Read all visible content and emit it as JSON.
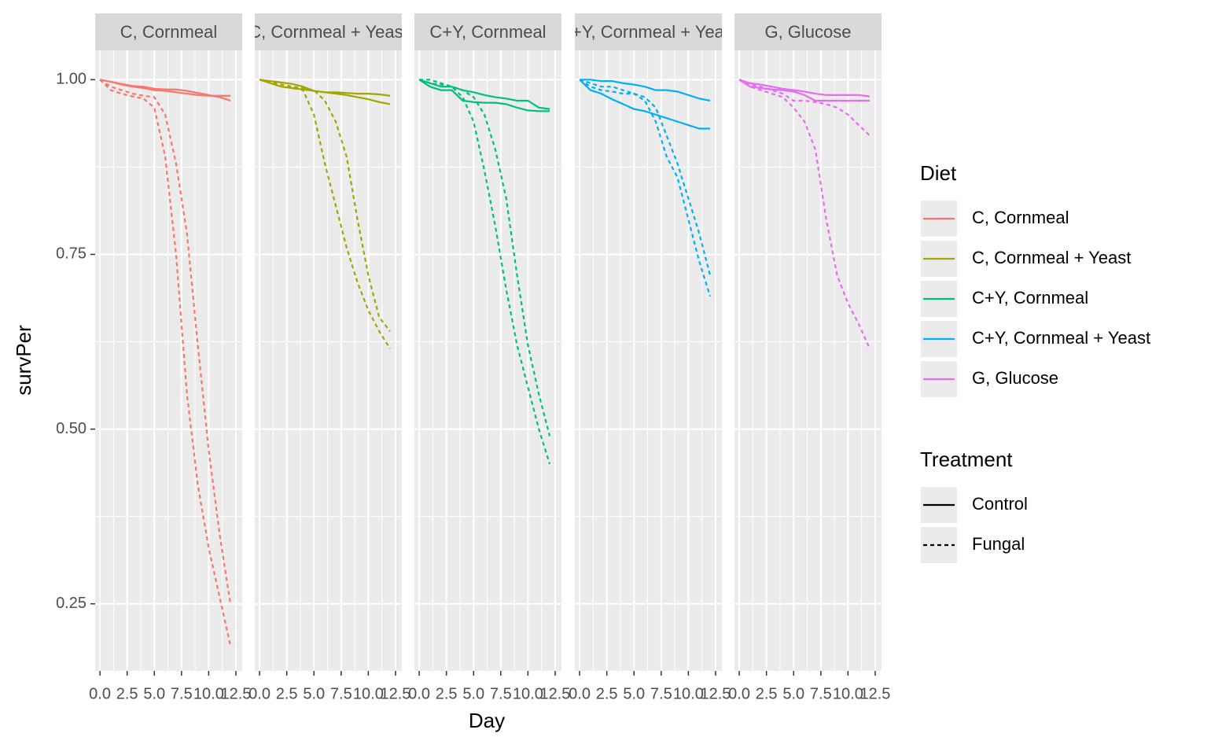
{
  "chart_data": {
    "type": "line",
    "x_label": "Day",
    "y_label": "survPer",
    "x": [
      0,
      1,
      2,
      3,
      4,
      5,
      6,
      7,
      8,
      9,
      10,
      11,
      12
    ],
    "xlim": [
      -0.44,
      13.08
    ],
    "ylim": [
      0.154,
      1.042
    ],
    "xticks": [
      {
        "value": 0,
        "label": "0.0"
      },
      2.5,
      {
        "value": 5,
        "label": "5.0"
      },
      7.5,
      {
        "value": 10,
        "label": "10.0"
      },
      12.5
    ],
    "yticks": [
      0.25,
      {
        "value": 0.5,
        "label": "0.50"
      },
      0.75,
      {
        "value": 1,
        "label": "1.00"
      }
    ],
    "grid": true,
    "legend_position": "right",
    "legends": [
      {
        "title": "Diet",
        "items": [
          {
            "name": "C, Cornmeal",
            "color": "#F8766D"
          },
          {
            "name": "C, Cornmeal + Yeast",
            "color": "#A3A500"
          },
          {
            "name": "C+Y, Cornmeal",
            "color": "#00BF7D"
          },
          {
            "name": "C+Y, Cornmeal + Yeast",
            "color": "#00B0F6"
          },
          {
            "name": "G, Glucose",
            "color": "#E76BF3"
          }
        ]
      },
      {
        "title": "Treatment",
        "items": [
          {
            "name": "Control",
            "linetype": "solid"
          },
          {
            "name": "Fungal",
            "linetype": "dashed"
          }
        ]
      }
    ],
    "facets": [
      {
        "title": "C, Cornmeal",
        "color": "#F8766D",
        "series": [
          {
            "linetype": "solid",
            "values": [
              1,
              0.997,
              0.994,
              0.991,
              0.99,
              0.987,
              0.986,
              0.986,
              0.984,
              0.981,
              0.978,
              0.975,
              0.97
            ]
          },
          {
            "linetype": "solid",
            "values": [
              1,
              0.997,
              0.993,
              0.99,
              0.988,
              0.985,
              0.984,
              0.982,
              0.98,
              0.978,
              0.977,
              0.977,
              0.977
            ]
          },
          {
            "linetype": "dashed",
            "values": [
              1,
              0.985,
              0.98,
              0.976,
              0.973,
              0.96,
              0.89,
              0.75,
              0.55,
              0.42,
              0.33,
              0.26,
              0.19
            ]
          },
          {
            "linetype": "dashed",
            "values": [
              1,
              0.99,
              0.985,
              0.98,
              0.977,
              0.975,
              0.95,
              0.88,
              0.78,
              0.62,
              0.47,
              0.35,
              0.25
            ]
          }
        ]
      },
      {
        "title": "C, Cornmeal + Yeast",
        "color": "#A3A500",
        "series": [
          {
            "linetype": "solid",
            "values": [
              1,
              0.998,
              0.996,
              0.994,
              0.99,
              0.984,
              0.982,
              0.98,
              0.978,
              0.975,
              0.972,
              0.968,
              0.965
            ]
          },
          {
            "linetype": "solid",
            "values": [
              1,
              0.995,
              0.99,
              0.988,
              0.986,
              0.984,
              0.982,
              0.982,
              0.981,
              0.98,
              0.98,
              0.979,
              0.977
            ]
          },
          {
            "linetype": "dashed",
            "values": [
              1,
              0.995,
              0.99,
              0.988,
              0.985,
              0.95,
              0.88,
              0.82,
              0.76,
              0.71,
              0.67,
              0.64,
              0.615
            ]
          },
          {
            "linetype": "dashed",
            "values": [
              1,
              0.997,
              0.993,
              0.99,
              0.988,
              0.985,
              0.97,
              0.94,
              0.89,
              0.8,
              0.72,
              0.66,
              0.64
            ]
          }
        ]
      },
      {
        "title": "C+Y, Cornmeal",
        "color": "#00BF7D",
        "series": [
          {
            "linetype": "solid",
            "values": [
              1,
              0.99,
              0.985,
              0.985,
              0.97,
              0.968,
              0.967,
              0.967,
              0.965,
              0.96,
              0.956,
              0.955,
              0.955
            ]
          },
          {
            "linetype": "solid",
            "values": [
              1,
              0.995,
              0.99,
              0.99,
              0.985,
              0.982,
              0.978,
              0.975,
              0.973,
              0.97,
              0.97,
              0.96,
              0.958
            ]
          },
          {
            "linetype": "dashed",
            "values": [
              1,
              1,
              0.995,
              0.99,
              0.975,
              0.94,
              0.87,
              0.79,
              0.7,
              0.62,
              0.56,
              0.5,
              0.45
            ]
          },
          {
            "linetype": "dashed",
            "values": [
              1,
              0.995,
              0.993,
              0.99,
              0.985,
              0.975,
              0.95,
              0.9,
              0.83,
              0.72,
              0.62,
              0.55,
              0.49
            ]
          }
        ]
      },
      {
        "title": "C+Y, Cornmeal + Yeast",
        "color": "#00B0F6",
        "series": [
          {
            "linetype": "solid",
            "values": [
              1,
              0.985,
              0.98,
              0.972,
              0.965,
              0.958,
              0.955,
              0.95,
              0.945,
              0.94,
              0.935,
              0.93,
              0.93
            ]
          },
          {
            "linetype": "solid",
            "values": [
              1,
              1,
              0.998,
              0.998,
              0.995,
              0.993,
              0.99,
              0.985,
              0.985,
              0.983,
              0.978,
              0.973,
              0.97
            ]
          },
          {
            "linetype": "dashed",
            "values": [
              1,
              0.99,
              0.985,
              0.983,
              0.98,
              0.98,
              0.97,
              0.94,
              0.89,
              0.86,
              0.8,
              0.74,
              0.69
            ]
          },
          {
            "linetype": "dashed",
            "values": [
              1,
              0.995,
              0.99,
              0.99,
              0.985,
              0.98,
              0.975,
              0.96,
              0.92,
              0.88,
              0.83,
              0.78,
              0.72
            ]
          }
        ]
      },
      {
        "title": "G, Glucose",
        "color": "#E76BF3",
        "series": [
          {
            "linetype": "solid",
            "values": [
              1,
              0.995,
              0.993,
              0.99,
              0.987,
              0.985,
              0.983,
              0.98,
              0.978,
              0.978,
              0.978,
              0.978,
              0.976
            ]
          },
          {
            "linetype": "solid",
            "values": [
              1,
              0.99,
              0.988,
              0.986,
              0.985,
              0.983,
              0.978,
              0.97,
              0.97,
              0.97,
              0.97,
              0.97,
              0.97
            ]
          },
          {
            "linetype": "dashed",
            "values": [
              1,
              0.993,
              0.99,
              0.985,
              0.98,
              0.97,
              0.97,
              0.968,
              0.965,
              0.96,
              0.95,
              0.935,
              0.92
            ]
          },
          {
            "linetype": "dashed",
            "values": [
              1,
              0.99,
              0.985,
              0.98,
              0.975,
              0.96,
              0.94,
              0.9,
              0.8,
              0.72,
              0.68,
              0.65,
              0.615
            ]
          }
        ]
      }
    ]
  }
}
